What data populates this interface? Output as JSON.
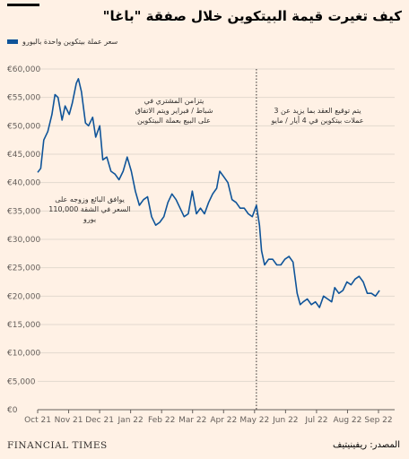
{
  "title": "كيف تغيرت قيمة البيتكوين خلال صفقة \"باغا\"",
  "source": "المصدر: ريفينيتيف",
  "brand": "FINANCIAL TIMES",
  "colors": {
    "background": "#fff1e5",
    "line": "#0f5499",
    "grid": "#e3d9ce"
  },
  "chart_data": {
    "type": "line",
    "ylim": [
      0,
      60000
    ],
    "yticks": [
      "€0",
      "€5,000",
      "€10,000",
      "€15,000",
      "€20,000",
      "€25,000",
      "€30,000",
      "€35,000",
      "€40,000",
      "€45,000",
      "€50,000",
      "€55,000",
      "€60,000"
    ],
    "xticks": [
      "Oct 21",
      "Nov 21",
      "Dec 21",
      "Jan 22",
      "Feb 22",
      "Mar 22",
      "Apr 22",
      "May 22",
      "Jun 22",
      "Jul 22",
      "Aug 22",
      "Sep 22"
    ],
    "grid": true,
    "legend_position": "top-left",
    "series": [
      {
        "name": "سعر عملة بيتكوين واحدة باليورو",
        "x": [
          "2021-10-01",
          "2021-10-04",
          "2021-10-07",
          "2021-10-11",
          "2021-10-15",
          "2021-10-18",
          "2021-10-21",
          "2021-10-25",
          "2021-10-28",
          "2021-11-01",
          "2021-11-04",
          "2021-11-08",
          "2021-11-10",
          "2021-11-13",
          "2021-11-17",
          "2021-11-20",
          "2021-11-24",
          "2021-11-27",
          "2021-12-01",
          "2021-12-04",
          "2021-12-08",
          "2021-12-12",
          "2021-12-16",
          "2021-12-20",
          "2021-12-24",
          "2021-12-28",
          "2022-01-01",
          "2022-01-05",
          "2022-01-09",
          "2022-01-13",
          "2022-01-17",
          "2022-01-21",
          "2022-01-25",
          "2022-01-29",
          "2022-02-02",
          "2022-02-06",
          "2022-02-10",
          "2022-02-14",
          "2022-02-18",
          "2022-02-22",
          "2022-02-26",
          "2022-03-02",
          "2022-03-06",
          "2022-03-10",
          "2022-03-14",
          "2022-03-18",
          "2022-03-22",
          "2022-03-26",
          "2022-03-29",
          "2022-04-02",
          "2022-04-06",
          "2022-04-10",
          "2022-04-14",
          "2022-04-18",
          "2022-04-22",
          "2022-04-26",
          "2022-04-30",
          "2022-05-04",
          "2022-05-07",
          "2022-05-09",
          "2022-05-12",
          "2022-05-16",
          "2022-05-20",
          "2022-05-24",
          "2022-05-28",
          "2022-06-01",
          "2022-06-05",
          "2022-06-09",
          "2022-06-13",
          "2022-06-16",
          "2022-06-19",
          "2022-06-23",
          "2022-06-27",
          "2022-07-01",
          "2022-07-05",
          "2022-07-09",
          "2022-07-13",
          "2022-07-17",
          "2022-07-20",
          "2022-07-24",
          "2022-07-28",
          "2022-08-01",
          "2022-08-05",
          "2022-08-09",
          "2022-08-13",
          "2022-08-17",
          "2022-08-21",
          "2022-08-25",
          "2022-08-29",
          "2022-09-02"
        ],
        "values": [
          41800,
          42500,
          47500,
          49000,
          52000,
          55500,
          55000,
          51000,
          53500,
          52000,
          54000,
          57500,
          58300,
          56000,
          50500,
          50000,
          51500,
          48000,
          50000,
          44000,
          44500,
          42000,
          41500,
          40500,
          42000,
          44500,
          42000,
          38500,
          36000,
          37000,
          37500,
          34000,
          32500,
          33000,
          34000,
          36500,
          38000,
          37000,
          35500,
          34000,
          34500,
          38500,
          34500,
          35500,
          34500,
          36500,
          38000,
          39000,
          42000,
          41000,
          40000,
          37000,
          36500,
          35500,
          35500,
          34500,
          34000,
          36000,
          32500,
          28000,
          25500,
          26500,
          26500,
          25500,
          25500,
          26500,
          27000,
          26000,
          20500,
          18500,
          19000,
          19500,
          18500,
          19000,
          18000,
          20000,
          19500,
          19000,
          21500,
          20500,
          21000,
          22500,
          22000,
          23000,
          23500,
          22500,
          20500,
          20500,
          20000,
          21000
        ]
      }
    ],
    "annotations": [
      "يتزامن المشتري في شباط / فبراير ويتم الاتفاق على البيع بعملة البيتكوين",
      "يتم توقيع العقد بما يزيد عن 3 عملات بيتكوين في 4 أيار / مايو",
      "يوافق البائع وزوجه على السعر في الشقة 110,000 يورو"
    ],
    "reference_line": {
      "x": "2022-05-04"
    }
  }
}
